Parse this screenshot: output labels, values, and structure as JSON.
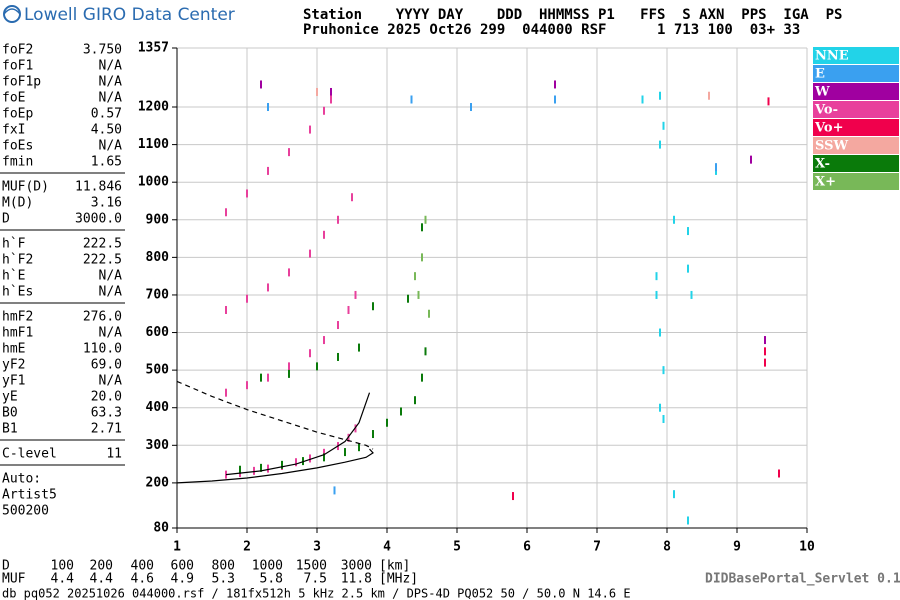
{
  "header": {
    "title": "Lowell GIRO Data Center",
    "line1": "Station    YYYY DAY    DDD  HHMMSS P1   FFS  S AXN  PPS  IGA  PS",
    "line2": "Pruhonice 2025 Oct26 299  044000 RSF      1 713 100  03+ 33"
  },
  "parameters": [
    [
      [
        "foF2",
        "3.750"
      ],
      [
        "foF1",
        "N/A"
      ],
      [
        "foF1p",
        "N/A"
      ],
      [
        "foE",
        "N/A"
      ],
      [
        "foEp",
        "0.57"
      ],
      [
        "fxI",
        "4.50"
      ],
      [
        "foEs",
        "N/A"
      ],
      [
        "fmin",
        "1.65"
      ]
    ],
    [
      [
        "MUF(D)",
        "11.846"
      ],
      [
        "M(D)",
        "3.16"
      ],
      [
        "D",
        "3000.0"
      ]
    ],
    [
      [
        "h`F",
        "222.5"
      ],
      [
        "h`F2",
        "222.5"
      ],
      [
        "h`E",
        "N/A"
      ],
      [
        "h`Es",
        "N/A"
      ]
    ],
    [
      [
        "hmF2",
        "276.0"
      ],
      [
        "hmF1",
        "N/A"
      ],
      [
        "hmE",
        "110.0"
      ],
      [
        "yF2",
        "69.0"
      ],
      [
        "yF1",
        "N/A"
      ],
      [
        "yE",
        "20.0"
      ],
      [
        "B0",
        "63.3"
      ],
      [
        "B1",
        "2.71"
      ]
    ],
    [
      [
        "C-level",
        "11"
      ]
    ]
  ],
  "auto": [
    "Auto:",
    "Artist5",
    "500200"
  ],
  "chart_data": {
    "type": "scatter",
    "xlim": [
      1,
      10
    ],
    "xticks": [
      1,
      2,
      3,
      4,
      5,
      6,
      7,
      8,
      9,
      10
    ],
    "ylim": [
      80,
      1357
    ],
    "yticks": [
      80,
      200,
      300,
      400,
      500,
      600,
      700,
      800,
      900,
      1000,
      1100,
      1200,
      1357
    ],
    "grid": true,
    "series": [
      {
        "name": "NNE",
        "color": "#22d3e8",
        "x": [
          7.65,
          7.9,
          7.95,
          7.9,
          8.1,
          8.3,
          8.3,
          8.35,
          7.9,
          7.95,
          7.9,
          7.95,
          8.1,
          8.3,
          7.85,
          7.85,
          8.7
        ],
        "y": [
          1220,
          1230,
          1150,
          1100,
          900,
          870,
          770,
          700,
          600,
          500,
          400,
          370,
          170,
          100,
          700,
          750,
          1030
        ]
      },
      {
        "name": "E",
        "color": "#3aa0f0",
        "x": [
          4.35,
          6.4,
          5.2,
          2.3,
          8.7,
          3.25
        ],
        "y": [
          1220,
          1220,
          1200,
          1200,
          1040,
          180
        ]
      },
      {
        "name": "W",
        "color": "#a000a0",
        "x": [
          2.2,
          3.2,
          6.4,
          9.2,
          9.4
        ],
        "y": [
          1260,
          1240,
          1260,
          1060,
          580
        ]
      },
      {
        "name": "Vo-",
        "color": "#e8409c",
        "x": [
          1.7,
          1.9,
          2.1,
          2.3,
          2.5,
          2.7,
          2.9,
          3.1,
          3.3,
          3.45,
          3.55,
          1.7,
          2.0,
          2.3,
          2.6,
          2.9,
          3.1,
          3.3,
          3.45,
          3.55,
          1.7,
          2.0,
          2.3,
          2.6,
          2.9,
          3.1,
          3.3,
          3.5,
          1.7,
          2.0,
          2.3,
          2.6,
          2.9,
          3.1,
          3.2
        ],
        "y": [
          222,
          226,
          232,
          238,
          245,
          255,
          265,
          280,
          298,
          320,
          345,
          440,
          460,
          480,
          510,
          545,
          580,
          620,
          660,
          700,
          660,
          690,
          720,
          760,
          810,
          860,
          900,
          960,
          920,
          970,
          1030,
          1080,
          1140,
          1190,
          1220
        ]
      },
      {
        "name": "Vo+",
        "color": "#f0004c",
        "x": [
          9.45,
          9.4,
          9.4,
          5.8,
          9.6
        ],
        "y": [
          1215,
          550,
          520,
          165,
          225
        ]
      },
      {
        "name": "SSW",
        "color": "#f4a8a0",
        "x": [
          8.6,
          3.0
        ],
        "y": [
          1230,
          1240
        ]
      },
      {
        "name": "X-",
        "color": "#0a7a0a",
        "x": [
          1.9,
          2.2,
          2.5,
          2.8,
          3.1,
          3.4,
          3.6,
          2.2,
          2.6,
          3.0,
          3.3,
          3.6,
          3.8,
          4.0,
          4.2,
          4.4,
          4.5,
          4.55,
          4.3,
          4.5,
          3.8
        ],
        "y": [
          235,
          240,
          248,
          258,
          268,
          282,
          295,
          480,
          490,
          510,
          535,
          560,
          330,
          360,
          390,
          420,
          480,
          550,
          690,
          880,
          670
        ]
      },
      {
        "name": "X+",
        "color": "#78b858",
        "x": [
          4.45,
          4.5,
          4.55,
          4.6,
          4.4
        ],
        "y": [
          700,
          800,
          900,
          650,
          750
        ]
      }
    ],
    "curves": [
      {
        "color": "#000000",
        "dashed": true,
        "x": [
          1,
          1.5,
          2,
          2.5,
          3,
          3.4,
          3.7,
          3.8
        ],
        "y": [
          470,
          430,
          395,
          365,
          335,
          315,
          300,
          290
        ]
      },
      {
        "color": "#000000",
        "dashed": false,
        "x": [
          1,
          1.5,
          2,
          2.5,
          3,
          3.4,
          3.7,
          3.8,
          3.75
        ],
        "y": [
          200,
          205,
          213,
          225,
          240,
          255,
          268,
          280,
          290
        ]
      },
      {
        "color": "#000000",
        "dashed": false,
        "x": [
          1.7,
          2.2,
          2.7,
          3.1,
          3.4,
          3.6,
          3.75
        ],
        "y": [
          222,
          232,
          250,
          275,
          310,
          360,
          440
        ]
      }
    ]
  },
  "muf_table": {
    "d_label": "D",
    "d": [
      100,
      200,
      400,
      600,
      800,
      1000,
      1500,
      3000
    ],
    "d_unit": "[km]",
    "muf_label": "MUF",
    "muf": [
      4.4,
      4.4,
      4.6,
      4.9,
      5.3,
      5.8,
      7.5,
      11.8
    ],
    "muf_unit": "[MHz]"
  },
  "footer": {
    "file": "db pq052 20251026 044000.rsf / 181fx512h 5 kHz 2.5 km / DPS-4D PQ052 50 / 50.0 N 14.6 E",
    "servlet": "DIDBasePortal_Servlet 0.1"
  }
}
